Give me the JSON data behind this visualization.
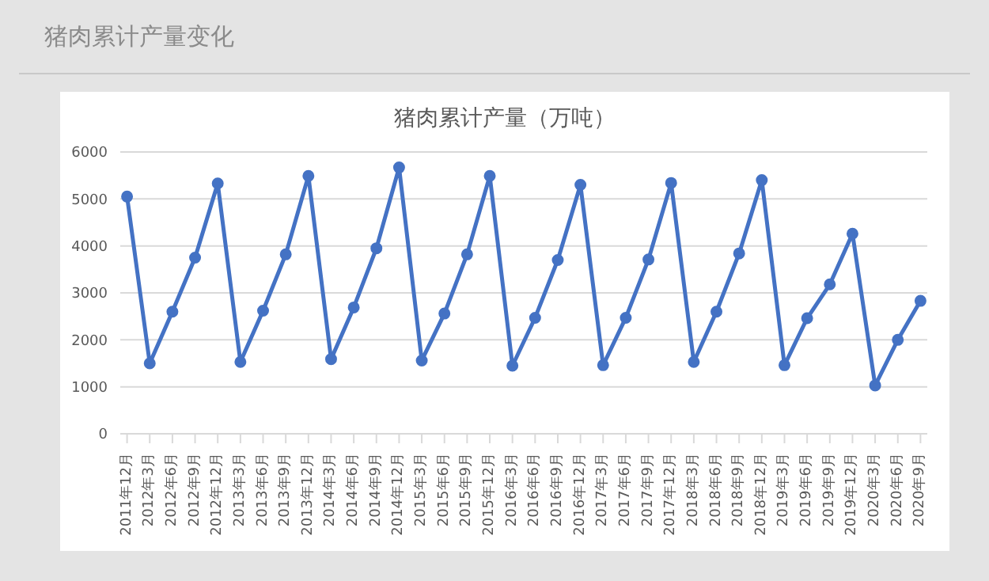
{
  "chart_data": {
    "type": "line",
    "subtitle": "猪肉累计产量变化",
    "title": "猪肉累计产量（万吨）",
    "categories": [
      "2011年12月",
      "2012年3月",
      "2012年6月",
      "2012年9月",
      "2012年12月",
      "2013年3月",
      "2013年6月",
      "2013年9月",
      "2013年12月",
      "2014年3月",
      "2014年6月",
      "2014年9月",
      "2014年12月",
      "2015年3月",
      "2015年6月",
      "2015年9月",
      "2015年12月",
      "2016年3月",
      "2016年6月",
      "2016年9月",
      "2016年12月",
      "2017年3月",
      "2017年6月",
      "2017年9月",
      "2017年12月",
      "2018年3月",
      "2018年6月",
      "2018年9月",
      "2018年12月",
      "2019年3月",
      "2019年6月",
      "2019年9月",
      "2019年12月",
      "2020年3月",
      "2020年6月",
      "2020年9月"
    ],
    "series": [
      {
        "color": "#4472c4",
        "values": [
          5050,
          1500,
          2600,
          3750,
          5330,
          1530,
          2620,
          3820,
          5490,
          1590,
          2690,
          3950,
          5670,
          1560,
          2560,
          3820,
          5490,
          1450,
          2470,
          3700,
          5300,
          1460,
          2470,
          3710,
          5340,
          1530,
          2600,
          3840,
          5400,
          1460,
          2460,
          3180,
          4260,
          1030,
          2000,
          2830
        ]
      }
    ],
    "ylim": [
      0,
      6000
    ],
    "yticks": [
      0,
      1000,
      2000,
      3000,
      4000,
      5000,
      6000
    ],
    "grid": "y",
    "marker": "circle",
    "line_style": "solid",
    "legend": false
  }
}
